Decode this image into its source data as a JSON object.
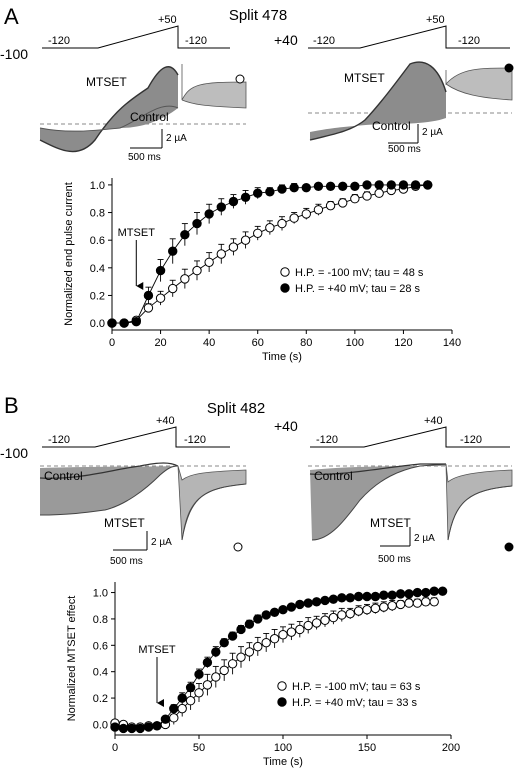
{
  "panelA": {
    "letter": "A",
    "title": "Split 478",
    "hp_left": "-100",
    "hp_right": "+40",
    "protocol": {
      "start": "-120",
      "peak": "+50",
      "end": "-120"
    },
    "traces_left": {
      "mtset_label": "MTSET",
      "control_label": "Control",
      "marker": "open-circle"
    },
    "traces_right": {
      "mtset_label": "MTSET",
      "control_label": "Control",
      "marker": "filled-circle"
    },
    "scale_bar": {
      "current": "2 µA",
      "time": "500 ms"
    }
  },
  "panelB": {
    "letter": "B",
    "title": "Split 482",
    "hp_left": "-100",
    "hp_right": "+40",
    "protocol": {
      "start": "-120",
      "peak": "+40",
      "end": "-120"
    },
    "traces_left": {
      "mtset_label": "MTSET",
      "control_label": "Control",
      "marker": "open-circle"
    },
    "traces_right": {
      "mtset_label": "MTSET",
      "control_label": "Control",
      "marker": "filled-circle"
    },
    "scale_bar": {
      "current": "2 µA",
      "time": "500 ms"
    }
  },
  "chart_data": [
    {
      "type": "scatter",
      "panel": "A",
      "xlabel": "Time (s)",
      "ylabel": "Normalized end pulse current",
      "xlim": [
        0,
        140
      ],
      "ylim": [
        -0.05,
        1.05
      ],
      "xticks": [
        "0",
        "20",
        "40",
        "60",
        "80",
        "100",
        "120",
        "140"
      ],
      "yticks": [
        "0.0",
        "0.2",
        "0.4",
        "0.6",
        "0.8",
        "1.0"
      ],
      "annotation": "MTSET",
      "annotation_x": 10,
      "legend_position": "lower-right",
      "series": [
        {
          "name": "H.P. = -100 mV; tau = 48 s",
          "marker": "open",
          "x": [
            0,
            5,
            10,
            15,
            20,
            25,
            30,
            35,
            40,
            45,
            50,
            55,
            60,
            65,
            70,
            75,
            80,
            85,
            90,
            95,
            100,
            105,
            110,
            115,
            120,
            125,
            130
          ],
          "y": [
            0.0,
            0.0,
            0.02,
            0.11,
            0.18,
            0.25,
            0.32,
            0.38,
            0.44,
            0.5,
            0.55,
            0.6,
            0.65,
            0.69,
            0.72,
            0.76,
            0.79,
            0.82,
            0.85,
            0.87,
            0.9,
            0.92,
            0.94,
            0.96,
            0.97,
            0.99,
            1.0
          ],
          "err": [
            0,
            0,
            0.01,
            0.03,
            0.05,
            0.06,
            0.07,
            0.07,
            0.07,
            0.07,
            0.06,
            0.06,
            0.05,
            0.05,
            0.05,
            0.04,
            0.04,
            0.04,
            0.03,
            0.03,
            0.03,
            0.03,
            0.02,
            0.02,
            0.02,
            0.02,
            0.02
          ]
        },
        {
          "name": "H.P. = +40 mV; tau = 28 s",
          "marker": "filled",
          "x": [
            0,
            5,
            10,
            15,
            20,
            25,
            30,
            35,
            40,
            45,
            50,
            55,
            60,
            65,
            70,
            75,
            80,
            85,
            90,
            95,
            100,
            105,
            110,
            115,
            120,
            125,
            130
          ],
          "y": [
            0.0,
            0.0,
            0.01,
            0.2,
            0.38,
            0.52,
            0.64,
            0.72,
            0.79,
            0.84,
            0.88,
            0.91,
            0.94,
            0.95,
            0.97,
            0.98,
            0.98,
            0.99,
            0.99,
            0.99,
            0.99,
            1.0,
            1.0,
            1.0,
            1.0,
            1.0,
            1.0
          ],
          "err": [
            0,
            0,
            0.01,
            0.06,
            0.08,
            0.09,
            0.08,
            0.08,
            0.07,
            0.06,
            0.05,
            0.05,
            0.04,
            0.03,
            0.03,
            0.03,
            0.02,
            0.02,
            0.02,
            0.02,
            0.02,
            0.02,
            0.01,
            0.01,
            0.01,
            0.01,
            0.02
          ]
        }
      ]
    },
    {
      "type": "scatter",
      "panel": "B",
      "xlabel": "Time (s)",
      "ylabel": "Normalized MTSET effect",
      "xlim": [
        0,
        200
      ],
      "ylim": [
        -0.08,
        1.08
      ],
      "xticks": [
        "0",
        "50",
        "100",
        "150",
        "200"
      ],
      "yticks": [
        "0.0",
        "0.2",
        "0.4",
        "0.6",
        "0.8",
        "1.0"
      ],
      "annotation": "MTSET",
      "annotation_x": 25,
      "legend_position": "lower-right",
      "series": [
        {
          "name": "H.P. = -100 mV; tau = 63 s",
          "marker": "open",
          "x": [
            0,
            5,
            10,
            15,
            20,
            25,
            30,
            35,
            40,
            45,
            50,
            55,
            60,
            65,
            70,
            75,
            80,
            85,
            90,
            95,
            100,
            105,
            110,
            115,
            120,
            125,
            130,
            135,
            140,
            145,
            150,
            155,
            160,
            165,
            170,
            175,
            180,
            185,
            190
          ],
          "y": [
            0.01,
            0.0,
            -0.02,
            -0.02,
            -0.01,
            -0.01,
            0.0,
            0.05,
            0.12,
            0.18,
            0.24,
            0.3,
            0.36,
            0.41,
            0.46,
            0.51,
            0.55,
            0.59,
            0.62,
            0.65,
            0.68,
            0.7,
            0.72,
            0.75,
            0.77,
            0.79,
            0.81,
            0.83,
            0.84,
            0.86,
            0.87,
            0.88,
            0.89,
            0.9,
            0.91,
            0.92,
            0.92,
            0.93,
            0.93
          ],
          "err": [
            0.02,
            0.02,
            0.02,
            0.02,
            0.02,
            0.02,
            0.03,
            0.05,
            0.06,
            0.07,
            0.07,
            0.08,
            0.08,
            0.08,
            0.08,
            0.08,
            0.07,
            0.07,
            0.07,
            0.07,
            0.06,
            0.06,
            0.06,
            0.06,
            0.05,
            0.05,
            0.05,
            0.05,
            0.04,
            0.04,
            0.04,
            0.04,
            0.04,
            0.04,
            0.03,
            0.03,
            0.03,
            0.03,
            0.03
          ]
        },
        {
          "name": "H.P. = +40 mV; tau = 33 s",
          "marker": "filled",
          "x": [
            0,
            5,
            10,
            15,
            20,
            25,
            30,
            35,
            40,
            45,
            50,
            55,
            60,
            65,
            70,
            75,
            80,
            85,
            90,
            95,
            100,
            105,
            110,
            115,
            120,
            125,
            130,
            135,
            140,
            145,
            150,
            155,
            160,
            165,
            170,
            175,
            180,
            185,
            190,
            195
          ],
          "y": [
            -0.02,
            -0.03,
            -0.03,
            -0.03,
            -0.02,
            -0.01,
            0.04,
            0.12,
            0.2,
            0.28,
            0.38,
            0.47,
            0.55,
            0.62,
            0.67,
            0.72,
            0.76,
            0.8,
            0.83,
            0.85,
            0.87,
            0.89,
            0.91,
            0.92,
            0.93,
            0.94,
            0.95,
            0.96,
            0.96,
            0.97,
            0.97,
            0.97,
            0.98,
            0.98,
            0.99,
            0.99,
            1.0,
            1.0,
            1.01,
            1.01
          ],
          "err": [
            0.01,
            0.01,
            0.01,
            0.01,
            0.01,
            0.01,
            0.02,
            0.03,
            0.04,
            0.04,
            0.04,
            0.04,
            0.04,
            0.03,
            0.03,
            0.03,
            0.03,
            0.03,
            0.02,
            0.02,
            0.02,
            0.02,
            0.02,
            0.02,
            0.02,
            0.02,
            0.01,
            0.01,
            0.01,
            0.01,
            0.01,
            0.01,
            0.01,
            0.01,
            0.01,
            0.01,
            0.01,
            0.01,
            0.01,
            0.01
          ]
        }
      ]
    }
  ]
}
